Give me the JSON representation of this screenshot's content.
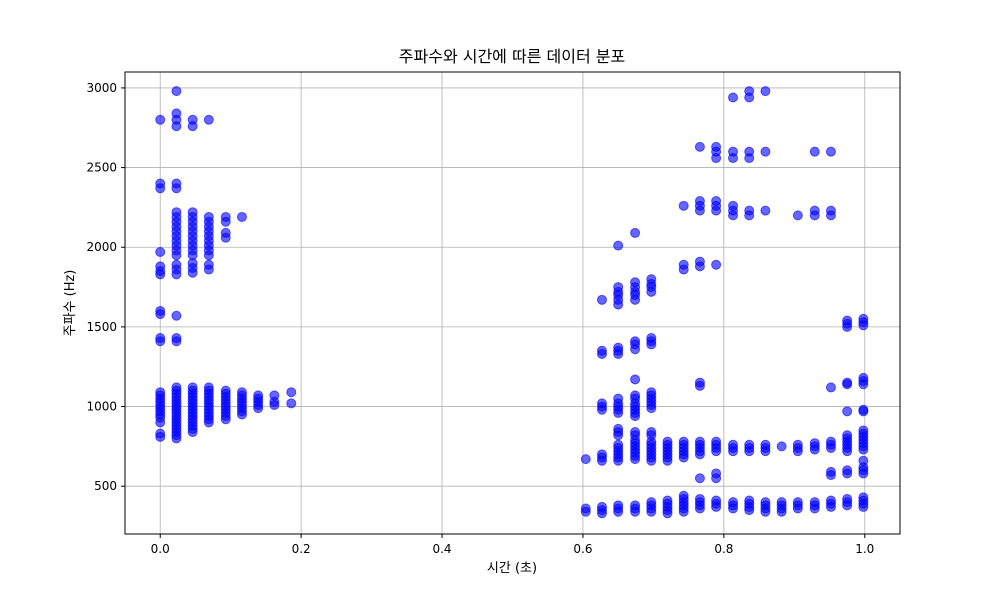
{
  "chart_data": {
    "type": "scatter",
    "title": "주파수와 시간에 따른 데이터 분포",
    "xlabel": "시간 (초)",
    "ylabel": "주파수 (Hz)",
    "xlim": [
      -0.05,
      1.05
    ],
    "ylim": [
      200,
      3100
    ],
    "xticks": [
      0.0,
      0.2,
      0.4,
      0.6,
      0.8,
      1.0
    ],
    "xtick_labels": [
      "0.0",
      "0.2",
      "0.4",
      "0.6",
      "0.8",
      "1.0"
    ],
    "yticks": [
      500,
      1000,
      1500,
      2000,
      2500,
      3000
    ],
    "ytick_labels": [
      "500",
      "1000",
      "1500",
      "2000",
      "2500",
      "3000"
    ],
    "grid": true,
    "marker_color": "#0000ff",
    "marker_alpha": 0.6,
    "time_columns": [
      0.0,
      0.023,
      0.046,
      0.069,
      0.093,
      0.116,
      0.139,
      0.162,
      0.186,
      0.604,
      0.627,
      0.65,
      0.674,
      0.697,
      0.72,
      0.743,
      0.766,
      0.789,
      0.813,
      0.836,
      0.859,
      0.882,
      0.905,
      0.929,
      0.952,
      0.975,
      0.998
    ],
    "columns": [
      {
        "x": 0.0,
        "y": [
          2800,
          2400,
          2370,
          1970,
          1880,
          1850,
          1830,
          1600,
          1580,
          1430,
          1410,
          1090,
          1070,
          1050,
          1030,
          1010,
          990,
          970,
          950,
          930,
          900,
          830,
          810
        ]
      },
      {
        "x": 0.023,
        "y": [
          2980,
          2840,
          2800,
          2760,
          2400,
          2370,
          2220,
          2190,
          2160,
          2130,
          2100,
          2070,
          2040,
          2010,
          1980,
          1950,
          1890,
          1860,
          1830,
          1570,
          1430,
          1410,
          1120,
          1100,
          1080,
          1060,
          1040,
          1020,
          1000,
          980,
          960,
          940,
          920,
          900,
          880,
          860,
          840,
          820,
          800
        ]
      },
      {
        "x": 0.046,
        "y": [
          2800,
          2760,
          2220,
          2190,
          2160,
          2130,
          2100,
          2070,
          2040,
          2010,
          1980,
          1950,
          1900,
          1870,
          1840,
          1120,
          1100,
          1080,
          1060,
          1040,
          1020,
          1000,
          980,
          960,
          940,
          920,
          900,
          880,
          860,
          840
        ]
      },
      {
        "x": 0.069,
        "y": [
          2800,
          2190,
          2160,
          2130,
          2100,
          2070,
          2040,
          2010,
          1980,
          1950,
          1890,
          1860,
          1120,
          1100,
          1080,
          1060,
          1040,
          1020,
          1000,
          980,
          960,
          940,
          920,
          900
        ]
      },
      {
        "x": 0.093,
        "y": [
          2190,
          2160,
          2090,
          2060,
          1100,
          1080,
          1060,
          1040,
          1020,
          1000,
          980,
          960,
          940,
          920
        ]
      },
      {
        "x": 0.116,
        "y": [
          2190,
          1090,
          1070,
          1050,
          1030,
          1010,
          990,
          970,
          950
        ]
      },
      {
        "x": 0.139,
        "y": [
          1070,
          1050,
          1030,
          1010,
          990
        ]
      },
      {
        "x": 0.162,
        "y": [
          1070,
          1030,
          1010
        ]
      },
      {
        "x": 0.186,
        "y": [
          1090,
          1020
        ]
      },
      {
        "x": 0.604,
        "y": [
          670,
          360,
          340
        ]
      },
      {
        "x": 0.627,
        "y": [
          1670,
          1350,
          1330,
          1020,
          1000,
          980,
          700,
          680,
          660,
          370,
          350,
          330
        ]
      },
      {
        "x": 0.65,
        "y": [
          2010,
          1750,
          1720,
          1700,
          1670,
          1640,
          1370,
          1350,
          1330,
          1050,
          1020,
          1000,
          980,
          960,
          860,
          840,
          820,
          760,
          740,
          720,
          700,
          680,
          660,
          380,
          360,
          340
        ]
      },
      {
        "x": 0.674,
        "y": [
          2090,
          1780,
          1750,
          1720,
          1700,
          1670,
          1410,
          1390,
          1360,
          1170,
          1070,
          1050,
          1020,
          1000,
          980,
          960,
          940,
          840,
          820,
          790,
          770,
          750,
          730,
          710,
          690,
          670,
          380,
          360,
          340
        ]
      },
      {
        "x": 0.697,
        "y": [
          1800,
          1770,
          1750,
          1720,
          1430,
          1410,
          1390,
          1090,
          1070,
          1050,
          1030,
          1010,
          990,
          840,
          820,
          780,
          760,
          740,
          720,
          700,
          680,
          660,
          400,
          380,
          360,
          340
        ]
      },
      {
        "x": 0.72,
        "y": [
          780,
          760,
          740,
          720,
          700,
          680,
          660,
          410,
          390,
          370,
          350,
          330
        ]
      },
      {
        "x": 0.743,
        "y": [
          2260,
          1890,
          1860,
          780,
          760,
          740,
          720,
          700,
          680,
          440,
          420,
          400,
          380,
          360,
          340
        ]
      },
      {
        "x": 0.766,
        "y": [
          2630,
          2290,
          2260,
          2230,
          1910,
          1880,
          1150,
          1130,
          780,
          760,
          740,
          720,
          700,
          550,
          420,
          400,
          380,
          360
        ]
      },
      {
        "x": 0.789,
        "y": [
          2630,
          2600,
          2560,
          2290,
          2260,
          2230,
          1890,
          780,
          760,
          740,
          720,
          580,
          550,
          410,
          390,
          370
        ]
      },
      {
        "x": 0.813,
        "y": [
          2940,
          2600,
          2560,
          2260,
          2230,
          2200,
          760,
          740,
          720,
          400,
          380,
          360
        ]
      },
      {
        "x": 0.836,
        "y": [
          2980,
          2940,
          2600,
          2560,
          2230,
          2200,
          760,
          740,
          720,
          410,
          390,
          370,
          350
        ]
      },
      {
        "x": 0.859,
        "y": [
          2980,
          2600,
          2230,
          760,
          740,
          720,
          400,
          380,
          360,
          340
        ]
      },
      {
        "x": 0.882,
        "y": [
          750,
          400,
          380,
          360,
          340
        ]
      },
      {
        "x": 0.905,
        "y": [
          2200,
          760,
          740,
          720,
          400,
          380,
          360
        ]
      },
      {
        "x": 0.929,
        "y": [
          2600,
          2230,
          2200,
          770,
          750,
          730,
          400,
          380,
          360
        ]
      },
      {
        "x": 0.952,
        "y": [
          2600,
          2230,
          2200,
          1120,
          780,
          760,
          740,
          590,
          570,
          410,
          390,
          370
        ]
      },
      {
        "x": 0.975,
        "y": [
          1540,
          1520,
          1500,
          1150,
          1140,
          970,
          820,
          800,
          780,
          760,
          740,
          720,
          600,
          580,
          420,
          400,
          380
        ]
      },
      {
        "x": 0.998,
        "y": [
          1550,
          1530,
          1510,
          1180,
          1160,
          1140,
          980,
          970,
          850,
          830,
          810,
          790,
          770,
          750,
          730,
          660,
          620,
          600,
          580,
          430,
          410,
          390,
          370
        ]
      }
    ]
  }
}
